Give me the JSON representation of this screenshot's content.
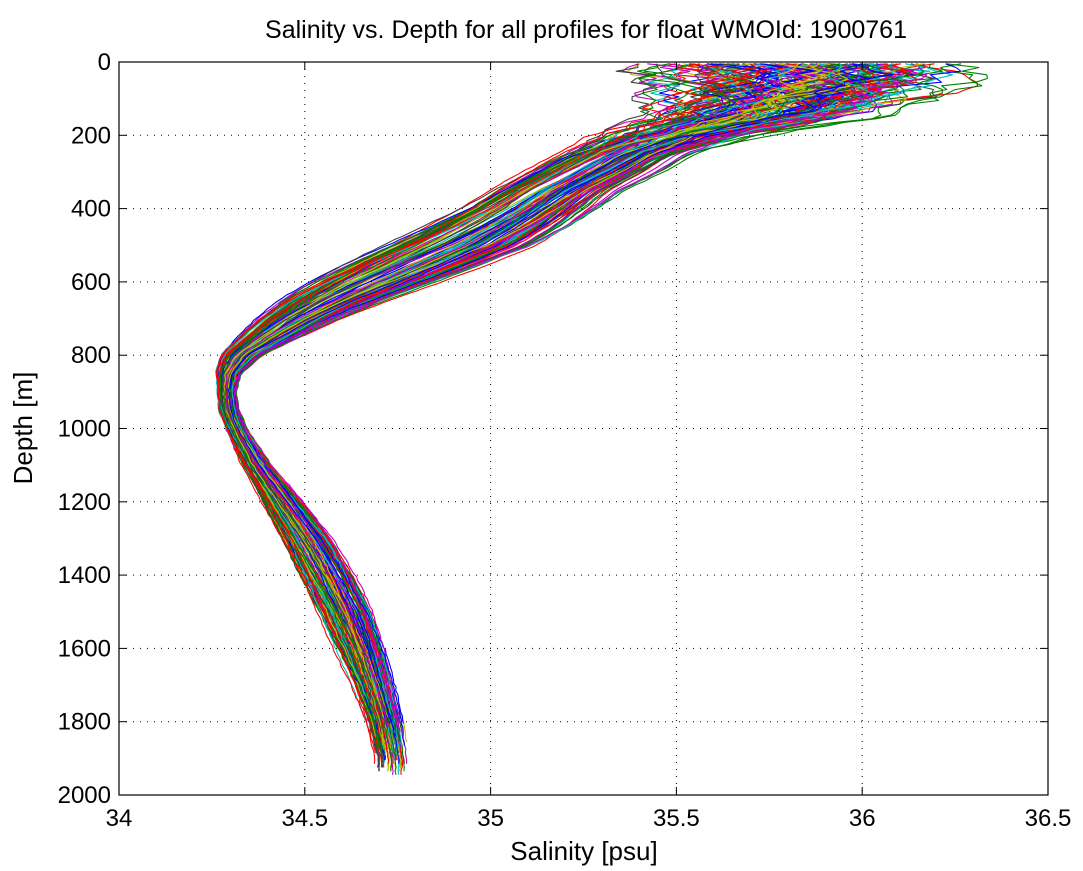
{
  "chart_data": {
    "type": "line",
    "title": "Salinity vs. Depth for all profiles for float WMOId: 1900761",
    "xlabel": "Salinity [psu]",
    "ylabel": "Depth [m]",
    "xlim": [
      34,
      36.5
    ],
    "ylim": [
      0,
      2000
    ],
    "y_reversed": true,
    "grid": true,
    "grid_style": "dotted",
    "xticks": [
      "34",
      "34.5",
      "35",
      "35.5",
      "36",
      "36.5"
    ],
    "yticks": [
      "0",
      "200",
      "400",
      "600",
      "800",
      "1000",
      "1200",
      "1400",
      "1600",
      "1800",
      "2000"
    ],
    "palette": [
      "#0000ff",
      "#008000",
      "#ff0000",
      "#00bfbf",
      "#bf00bf",
      "#bfbf00",
      "#404040"
    ],
    "envelope": {
      "depth": [
        5,
        50,
        100,
        150,
        200,
        250,
        300,
        350,
        400,
        450,
        500,
        550,
        600,
        650,
        700,
        750,
        800,
        850,
        900,
        950,
        1000,
        1100,
        1200,
        1300,
        1400,
        1500,
        1600,
        1700,
        1800,
        1900,
        1950
      ],
      "salinity_low": [
        35.33,
        35.36,
        35.38,
        35.33,
        35.22,
        35.12,
        35.02,
        34.93,
        34.84,
        34.73,
        34.62,
        34.52,
        34.43,
        34.36,
        34.31,
        34.27,
        34.24,
        34.24,
        34.25,
        34.25,
        34.27,
        34.31,
        34.36,
        34.41,
        34.46,
        34.51,
        34.56,
        34.61,
        34.65,
        34.68,
        34.68
      ],
      "salinity_high": [
        36.3,
        36.35,
        36.22,
        36.07,
        35.78,
        35.6,
        35.52,
        35.42,
        35.36,
        35.3,
        35.22,
        35.09,
        34.95,
        34.8,
        34.66,
        34.54,
        34.42,
        34.35,
        34.33,
        34.34,
        34.36,
        34.43,
        34.52,
        34.6,
        34.66,
        34.71,
        34.74,
        34.76,
        34.78,
        34.79,
        34.79
      ]
    },
    "profile_count": 150
  }
}
